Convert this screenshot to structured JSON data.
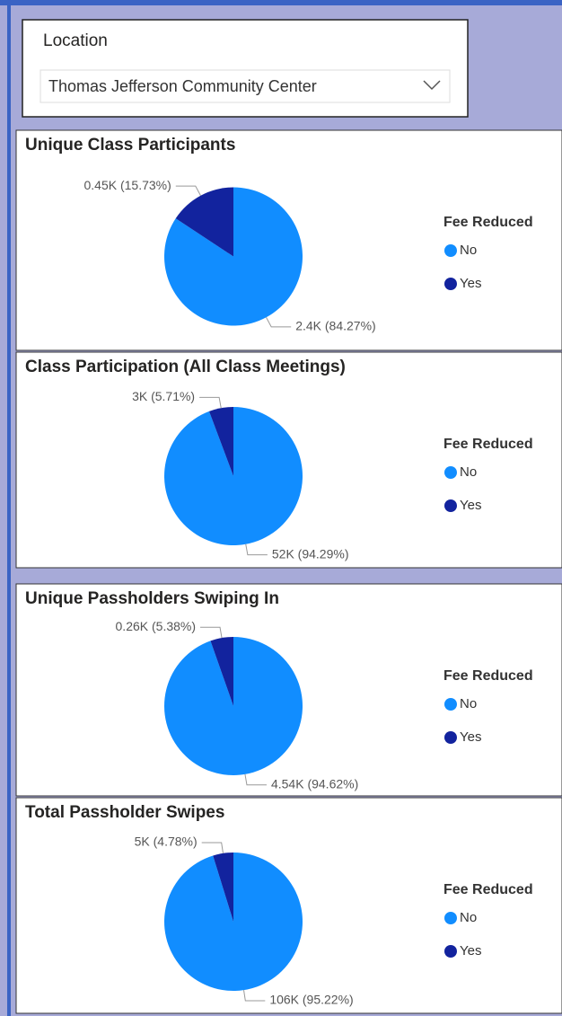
{
  "slicer": {
    "title": "Location",
    "selected": "Thomas Jefferson Community Center"
  },
  "chart_data": [
    {
      "type": "pie",
      "title": "Unique Class Participants",
      "legend_title": "Fee Reduced",
      "categories": [
        "No",
        "Yes"
      ],
      "values": [
        84.27,
        15.73
      ],
      "value_labels": [
        "2.4K (84.27%)",
        "0.45K (15.73%)"
      ],
      "colors": [
        "#118DFF",
        "#12239E"
      ]
    },
    {
      "type": "pie",
      "title": "Class Participation (All Class Meetings)",
      "legend_title": "Fee Reduced",
      "categories": [
        "No",
        "Yes"
      ],
      "values": [
        94.29,
        5.71
      ],
      "value_labels": [
        "52K (94.29%)",
        "3K (5.71%)"
      ],
      "colors": [
        "#118DFF",
        "#12239E"
      ]
    },
    {
      "type": "pie",
      "title": "Unique Passholders Swiping In",
      "legend_title": "Fee Reduced",
      "categories": [
        "No",
        "Yes"
      ],
      "values": [
        94.62,
        5.38
      ],
      "value_labels": [
        "4.54K (94.62%)",
        "0.26K (5.38%)"
      ],
      "colors": [
        "#118DFF",
        "#12239E"
      ]
    },
    {
      "type": "pie",
      "title": "Total Passholder Swipes",
      "legend_title": "Fee Reduced",
      "categories": [
        "No",
        "Yes"
      ],
      "values": [
        95.22,
        4.78
      ],
      "value_labels": [
        "106K (95.22%)",
        "5K (4.78%)"
      ],
      "colors": [
        "#118DFF",
        "#12239E"
      ]
    }
  ]
}
